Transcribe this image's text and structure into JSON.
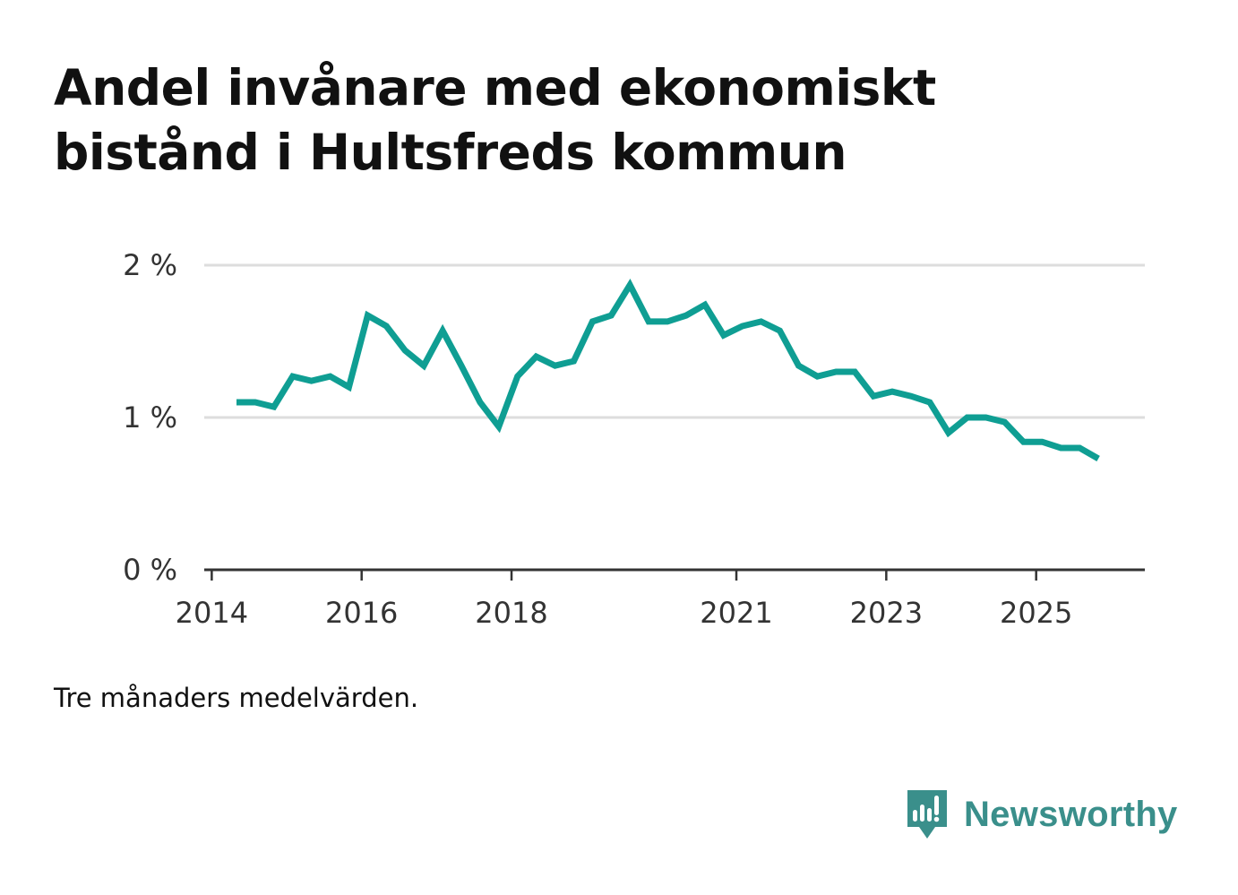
{
  "title": "Andel invånare med ekonomiskt bistånd i Hultsfreds kommun",
  "note": "Tre månaders medelvärden.",
  "brand": {
    "name": "Newsworthy",
    "icon": "bar-chart-speech-bubble-icon",
    "color": "#3a8f8b"
  },
  "colors": {
    "line": "#0f9e93",
    "grid": "#dddddd",
    "axis": "#333333"
  },
  "chart_data": {
    "type": "line",
    "title": "Andel invånare med ekonomiskt bistånd i Hultsfreds kommun",
    "xlabel": "",
    "ylabel": "",
    "ylim": [
      0,
      2
    ],
    "xlim": [
      2013.9,
      2026.45
    ],
    "grid": true,
    "x_ticks": [
      2014,
      2016,
      2018,
      2021,
      2023,
      2025
    ],
    "x_tick_labels": [
      "2014",
      "2016",
      "2018",
      "2021",
      "2023",
      "2025"
    ],
    "y_ticks": [
      0,
      1,
      2
    ],
    "y_tick_labels": [
      "0 %",
      "1 %",
      "2 %"
    ],
    "series": [
      {
        "name": "Andel invånare med ekonomiskt bistånd",
        "x": [
          2014.33,
          2014.58,
          2014.83,
          2015.08,
          2015.33,
          2015.58,
          2015.83,
          2016.08,
          2016.33,
          2016.58,
          2016.83,
          2017.08,
          2017.33,
          2017.58,
          2017.83,
          2018.08,
          2018.33,
          2018.58,
          2018.83,
          2019.08,
          2019.33,
          2019.58,
          2019.83,
          2020.08,
          2020.33,
          2020.58,
          2020.83,
          2021.08,
          2021.33,
          2021.58,
          2021.83,
          2022.08,
          2022.33,
          2022.58,
          2022.83,
          2023.08,
          2023.33,
          2023.58,
          2023.83,
          2024.08,
          2024.33,
          2024.58,
          2024.83,
          2025.08,
          2025.33,
          2025.58,
          2025.83
        ],
        "values": [
          1.1,
          1.1,
          1.07,
          1.27,
          1.24,
          1.27,
          1.2,
          1.67,
          1.6,
          1.44,
          1.34,
          1.57,
          1.34,
          1.1,
          0.94,
          1.27,
          1.4,
          1.34,
          1.37,
          1.63,
          1.67,
          1.87,
          1.63,
          1.63,
          1.67,
          1.74,
          1.54,
          1.6,
          1.63,
          1.57,
          1.34,
          1.27,
          1.3,
          1.3,
          1.14,
          1.17,
          1.14,
          1.1,
          0.9,
          1.0,
          1.0,
          0.97,
          0.84,
          0.84,
          0.8,
          0.8,
          0.73
        ]
      }
    ]
  }
}
